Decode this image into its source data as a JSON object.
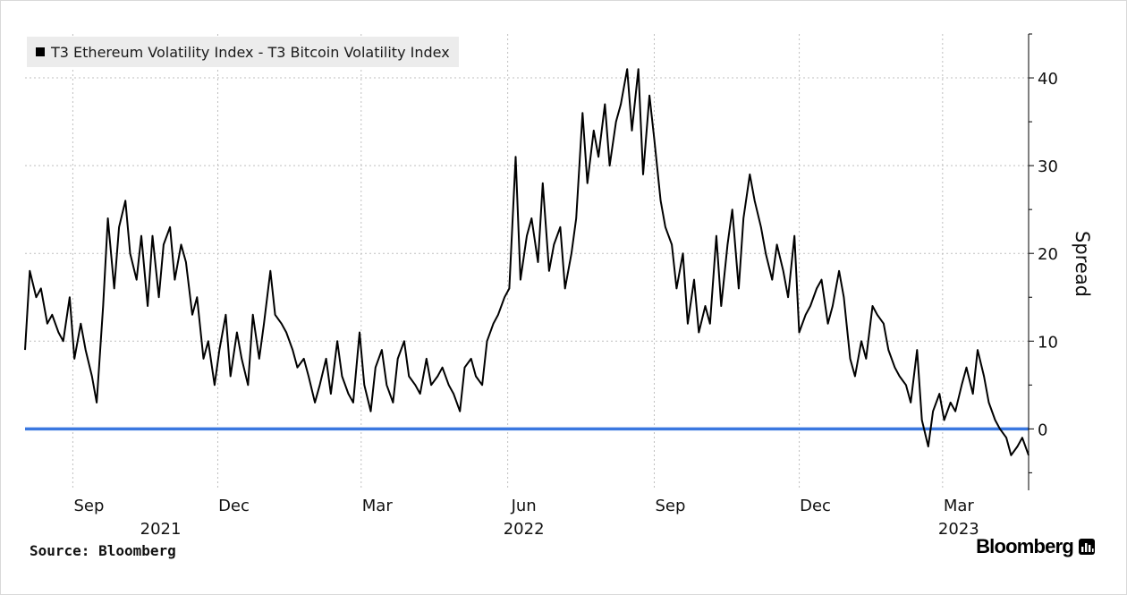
{
  "source_label": "Source: Bloomberg",
  "brand": "Bloomberg",
  "colors": {
    "series": "#000000",
    "zero_line": "#3a78e0",
    "grid": "#bfbfbf",
    "legend_bg": "#ececec"
  },
  "chart_data": {
    "type": "line",
    "legend": [
      "T3 Ethereum Volatility Index - T3 Bitcoin Volatility Index"
    ],
    "ylabel": "Spread",
    "ylim": [
      -7,
      45
    ],
    "yticks": [
      0,
      10,
      20,
      30,
      40
    ],
    "xlim": [
      "2021-08-02",
      "2023-04-24"
    ],
    "x_tick_labels": [
      {
        "date": "2021-09-01",
        "label": "Sep"
      },
      {
        "date": "2021-12-01",
        "label": "Dec"
      },
      {
        "date": "2022-03-01",
        "label": "Mar"
      },
      {
        "date": "2022-06-01",
        "label": "Jun"
      },
      {
        "date": "2022-09-01",
        "label": "Sep"
      },
      {
        "date": "2022-12-01",
        "label": "Dec"
      },
      {
        "date": "2023-03-01",
        "label": "Mar"
      }
    ],
    "year_labels": [
      {
        "date": "2021-10-16",
        "label": "2021"
      },
      {
        "date": "2022-06-01",
        "label": "2022"
      },
      {
        "date": "2023-03-01",
        "label": "2023"
      }
    ],
    "reference_line": {
      "y": 0
    },
    "grid": true,
    "series": [
      {
        "x": [
          "2021-08-02",
          "2021-08-05",
          "2021-08-09",
          "2021-08-12",
          "2021-08-16",
          "2021-08-19",
          "2021-08-23",
          "2021-08-26",
          "2021-08-30",
          "2021-09-02",
          "2021-09-06",
          "2021-09-09",
          "2021-09-13",
          "2021-09-16",
          "2021-09-20",
          "2021-09-23",
          "2021-09-27",
          "2021-09-30",
          "2021-10-04",
          "2021-10-07",
          "2021-10-11",
          "2021-10-14",
          "2021-10-18",
          "2021-10-21",
          "2021-10-25",
          "2021-10-28",
          "2021-11-01",
          "2021-11-04",
          "2021-11-08",
          "2021-11-11",
          "2021-11-15",
          "2021-11-18",
          "2021-11-22",
          "2021-11-25",
          "2021-11-29",
          "2021-12-02",
          "2021-12-06",
          "2021-12-09",
          "2021-12-13",
          "2021-12-16",
          "2021-12-20",
          "2021-12-23",
          "2021-12-27",
          "2021-12-30",
          "2022-01-03",
          "2022-01-06",
          "2022-01-10",
          "2022-01-13",
          "2022-01-17",
          "2022-01-20",
          "2022-01-24",
          "2022-01-27",
          "2022-01-31",
          "2022-02-03",
          "2022-02-07",
          "2022-02-10",
          "2022-02-14",
          "2022-02-17",
          "2022-02-21",
          "2022-02-24",
          "2022-02-28",
          "2022-03-03",
          "2022-03-07",
          "2022-03-10",
          "2022-03-14",
          "2022-03-17",
          "2022-03-21",
          "2022-03-24",
          "2022-03-28",
          "2022-03-31",
          "2022-04-04",
          "2022-04-07",
          "2022-04-11",
          "2022-04-14",
          "2022-04-18",
          "2022-04-21",
          "2022-04-25",
          "2022-04-28",
          "2022-05-02",
          "2022-05-05",
          "2022-05-09",
          "2022-05-12",
          "2022-05-16",
          "2022-05-19",
          "2022-05-23",
          "2022-05-26",
          "2022-05-30",
          "2022-06-02",
          "2022-06-06",
          "2022-06-09",
          "2022-06-13",
          "2022-06-16",
          "2022-06-20",
          "2022-06-23",
          "2022-06-27",
          "2022-06-30",
          "2022-07-04",
          "2022-07-07",
          "2022-07-11",
          "2022-07-14",
          "2022-07-18",
          "2022-07-21",
          "2022-07-25",
          "2022-07-28",
          "2022-08-01",
          "2022-08-04",
          "2022-08-08",
          "2022-08-11",
          "2022-08-15",
          "2022-08-18",
          "2022-08-22",
          "2022-08-25",
          "2022-08-29",
          "2022-09-01",
          "2022-09-05",
          "2022-09-08",
          "2022-09-12",
          "2022-09-15",
          "2022-09-19",
          "2022-09-22",
          "2022-09-26",
          "2022-09-29",
          "2022-10-03",
          "2022-10-06",
          "2022-10-10",
          "2022-10-13",
          "2022-10-17",
          "2022-10-20",
          "2022-10-24",
          "2022-10-27",
          "2022-10-31",
          "2022-11-03",
          "2022-11-07",
          "2022-11-10",
          "2022-11-14",
          "2022-11-17",
          "2022-11-21",
          "2022-11-24",
          "2022-11-28",
          "2022-12-01",
          "2022-12-05",
          "2022-12-08",
          "2022-12-12",
          "2022-12-15",
          "2022-12-19",
          "2022-12-22",
          "2022-12-26",
          "2022-12-29",
          "2023-01-02",
          "2023-01-05",
          "2023-01-09",
          "2023-01-12",
          "2023-01-16",
          "2023-01-19",
          "2023-01-23",
          "2023-01-26",
          "2023-01-30",
          "2023-02-02",
          "2023-02-06",
          "2023-02-09",
          "2023-02-13",
          "2023-02-16",
          "2023-02-20",
          "2023-02-23",
          "2023-02-27",
          "2023-03-02",
          "2023-03-06",
          "2023-03-09",
          "2023-03-13",
          "2023-03-16",
          "2023-03-20",
          "2023-03-23",
          "2023-03-27",
          "2023-03-30",
          "2023-04-03",
          "2023-04-06",
          "2023-04-10",
          "2023-04-13",
          "2023-04-17",
          "2023-04-20",
          "2023-04-24"
        ],
        "y": [
          9,
          18,
          15,
          16,
          12,
          13,
          11,
          10,
          15,
          8,
          12,
          9,
          6,
          3,
          14,
          24,
          16,
          23,
          26,
          20,
          17,
          22,
          14,
          22,
          15,
          21,
          23,
          17,
          21,
          19,
          13,
          15,
          8,
          10,
          5,
          9,
          13,
          6,
          11,
          8,
          5,
          13,
          8,
          12,
          18,
          13,
          12,
          11,
          9,
          7,
          8,
          6,
          3,
          5,
          8,
          4,
          10,
          6,
          4,
          3,
          11,
          5,
          2,
          7,
          9,
          5,
          3,
          8,
          10,
          6,
          5,
          4,
          8,
          5,
          6,
          7,
          5,
          4,
          2,
          7,
          8,
          6,
          5,
          10,
          12,
          13,
          15,
          16,
          31,
          17,
          22,
          24,
          19,
          28,
          18,
          21,
          23,
          16,
          20,
          24,
          36,
          28,
          34,
          31,
          37,
          30,
          35,
          37,
          41,
          34,
          41,
          29,
          38,
          33,
          26,
          23,
          21,
          16,
          20,
          12,
          17,
          11,
          14,
          12,
          22,
          14,
          21,
          25,
          16,
          24,
          29,
          26,
          23,
          20,
          17,
          21,
          18,
          15,
          22,
          11,
          13,
          14,
          16,
          17,
          12,
          14,
          18,
          15,
          8,
          6,
          10,
          8,
          14,
          13,
          12,
          9,
          7,
          6,
          5,
          3,
          9,
          1,
          -2,
          2,
          4,
          1,
          3,
          2,
          5,
          7,
          4,
          9,
          6,
          3,
          1,
          0,
          -1,
          -3,
          -2,
          -1,
          -3
        ],
        "name": "T3 Ethereum Volatility Index - T3 Bitcoin Volatility Index"
      }
    ]
  }
}
